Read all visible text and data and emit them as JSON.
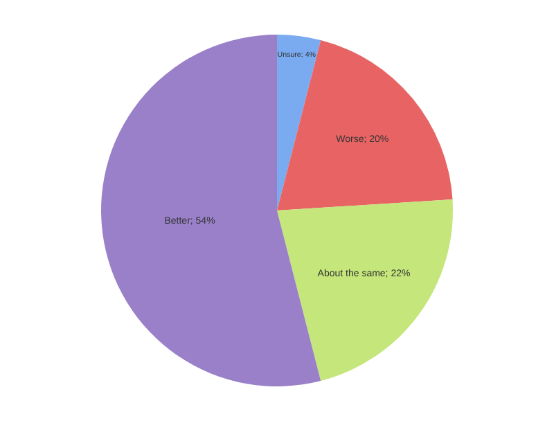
{
  "chart_data": {
    "type": "pie",
    "categories": [
      "Unsure",
      "Worse",
      "About the same",
      "Better"
    ],
    "values": [
      4,
      20,
      22,
      54
    ],
    "value_labels": [
      "4%",
      "20%",
      "22%",
      "54%"
    ],
    "colors": [
      "#7aaaf0",
      "#e86464",
      "#c4e67a",
      "#9a80c8"
    ]
  }
}
